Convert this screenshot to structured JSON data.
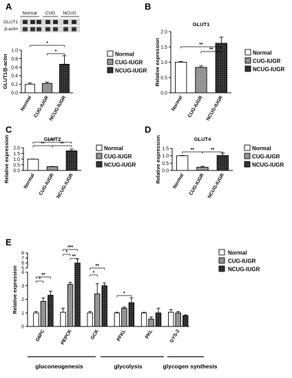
{
  "panels": {
    "A": {
      "letter": "A",
      "blot_labels": [
        "GLUT1",
        "β-actin"
      ],
      "blot_headers": [
        "Normal",
        "CUG",
        "NCUG"
      ]
    },
    "B": {
      "letter": "B"
    },
    "C": {
      "letter": "C"
    },
    "D": {
      "letter": "D"
    },
    "E": {
      "letter": "E"
    }
  },
  "legend": {
    "items": [
      {
        "label": "Normal",
        "color": "#ffffff"
      },
      {
        "label": "CUG-IUGR",
        "color": "#909090"
      },
      {
        "label": "NCUG-IUGR",
        "color": "#2e2e2e"
      }
    ]
  },
  "chart_data": [
    {
      "panel": "A",
      "type": "bar",
      "title": "",
      "ylabel": "GLUT1/β-actin",
      "ylim": [
        0,
        1.0
      ],
      "yticks": [
        "0.0",
        "0.2",
        "0.4",
        "0.6",
        "0.8",
        "1.0"
      ],
      "categories": [
        "Normal",
        "CUG-IUGR",
        "NCUG-IUGR"
      ],
      "values": [
        0.2,
        0.22,
        0.67
      ],
      "errors": [
        0.03,
        0.03,
        0.2
      ],
      "significance": [
        {
          "from": 0,
          "to": 2,
          "label": "*"
        },
        {
          "from": 1,
          "to": 2,
          "label": "*"
        }
      ]
    },
    {
      "panel": "B",
      "type": "bar",
      "title": "GLUT1",
      "ylabel": "Relative expression",
      "ylim": [
        0,
        2.0
      ],
      "yticks": [
        "0.0",
        "0.5",
        "1.0",
        "1.5",
        "2.0"
      ],
      "categories": [
        "Normal",
        "CUG-IUGR",
        "NCUG-IUGR"
      ],
      "values": [
        1.0,
        0.83,
        1.62
      ],
      "errors": [
        0.02,
        0.05,
        0.2
      ],
      "significance": [
        {
          "from": 0,
          "to": 2,
          "label": "**"
        },
        {
          "from": 1,
          "to": 2,
          "label": "**"
        }
      ]
    },
    {
      "panel": "C",
      "type": "bar",
      "title": "GLUT2",
      "ylabel": "Relative expression",
      "ylim": [
        0,
        2.0
      ],
      "yticks": [
        "0.0",
        "0.5",
        "1.0",
        "1.5",
        "2.0"
      ],
      "categories": [
        "Normal",
        "CUG-IUGR",
        "NCUG-IUGR"
      ],
      "values": [
        1.0,
        0.33,
        1.73
      ],
      "errors": [
        0.01,
        0.02,
        0.15
      ],
      "significance": [
        {
          "from": 0,
          "to": 1,
          "label": "**"
        },
        {
          "from": 1,
          "to": 2,
          "label": "**"
        },
        {
          "from": 0,
          "to": 2,
          "label": "***"
        }
      ]
    },
    {
      "panel": "D",
      "type": "bar",
      "title": "GLUT4",
      "ylabel": "Relative expression",
      "ylim": [
        0,
        1.5
      ],
      "yticks": [
        "0.0",
        "0.5",
        "1.0",
        "1.5"
      ],
      "categories": [
        "Normal",
        "CUG-IUGR",
        "NCUG-IUGR"
      ],
      "values": [
        1.0,
        0.22,
        1.02
      ],
      "errors": [
        0.02,
        0.06,
        0.16
      ],
      "significance": [
        {
          "from": 0,
          "to": 1,
          "label": "**"
        },
        {
          "from": 1,
          "to": 2,
          "label": "**"
        }
      ]
    },
    {
      "panel": "E",
      "type": "bar",
      "title": "",
      "ylabel": "Relative expression",
      "yticks": [
        "0",
        "1",
        "2",
        "3",
        "4",
        "5",
        "6",
        "7",
        "8"
      ],
      "axis_break_between": [
        "4",
        "5"
      ],
      "categories": [
        "G6PC",
        "PEPCK",
        "GCK",
        "PFKL",
        "PKL",
        "GYS-2"
      ],
      "series": [
        {
          "name": "Normal",
          "values": [
            1.0,
            1.05,
            1.0,
            1.0,
            1.0,
            1.05
          ],
          "errors": [
            0.1,
            0.3,
            0.1,
            0.05,
            0.05,
            0.2
          ]
        },
        {
          "name": "CUG-IUGR",
          "values": [
            1.85,
            3.1,
            2.4,
            1.35,
            0.55,
            1.0
          ],
          "errors": [
            0.25,
            0.15,
            0.75,
            0.08,
            0.15,
            0.1
          ]
        },
        {
          "name": "NCUG-IUGR",
          "values": [
            2.3,
            6.0,
            3.0,
            1.75,
            1.0,
            0.8
          ],
          "errors": [
            0.3,
            0.8,
            0.2,
            0.35,
            0.35,
            0.05
          ]
        }
      ],
      "significance": [
        {
          "category": 0,
          "from": 0,
          "to": 1,
          "label": "*"
        },
        {
          "category": 0,
          "from": 0,
          "to": 2,
          "label": "**"
        },
        {
          "category": 1,
          "from": 0,
          "to": 1,
          "label": "*"
        },
        {
          "category": 1,
          "from": 1,
          "to": 2,
          "label": "**"
        },
        {
          "category": 1,
          "from": 0,
          "to": 2,
          "label": "***"
        },
        {
          "category": 2,
          "from": 0,
          "to": 1,
          "label": "*"
        },
        {
          "category": 2,
          "from": 0,
          "to": 2,
          "label": "**"
        },
        {
          "category": 3,
          "from": 0,
          "to": 2,
          "label": "*"
        }
      ],
      "groups": [
        {
          "label": "gluconeogenesis",
          "from": 0,
          "to": 1
        },
        {
          "label": "glycolysis",
          "from": 2,
          "to": 4
        },
        {
          "label": "glycogen synthesis",
          "from": 5,
          "to": 5
        }
      ]
    }
  ]
}
